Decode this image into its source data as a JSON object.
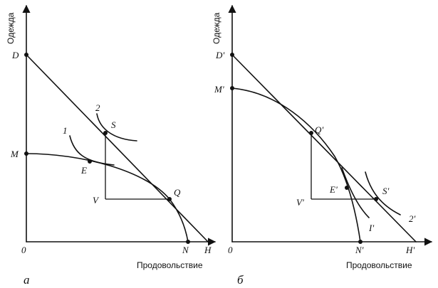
{
  "panel_a": {
    "caption": "а",
    "y_axis_title": "Одежда",
    "x_axis_title": "Продовольствие",
    "labels": {
      "origin": "0",
      "D": "D",
      "M": "M",
      "S": "S",
      "E": "E",
      "V": "V",
      "Q": "Q",
      "N": "N",
      "H": "H",
      "curve1": "1",
      "curve2": "2"
    }
  },
  "panel_b": {
    "caption": "б",
    "y_axis_title": "Одежда",
    "x_axis_title": "Продовольствие",
    "labels": {
      "origin": "0",
      "D": "D'",
      "M": "M'",
      "Q": "Q'",
      "E": "E'",
      "V": "V'",
      "S": "S'",
      "N": "N'",
      "H": "H'",
      "curve1": "I'",
      "curve2": "2'"
    }
  }
}
